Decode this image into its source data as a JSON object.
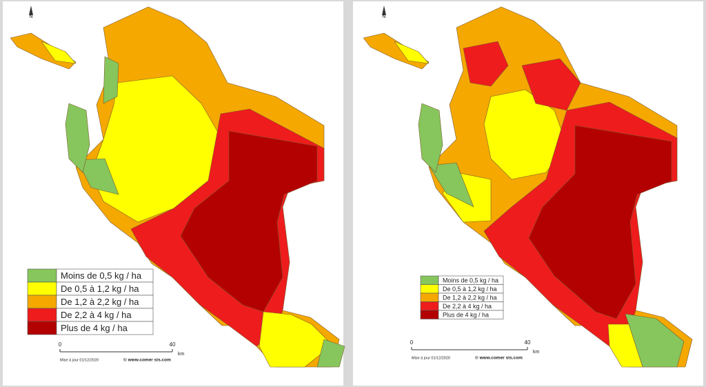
{
  "panels": [
    {
      "north": "N",
      "legend": [
        {
          "label": "Moins de 0,5 kg / ha",
          "color": "#86c65c"
        },
        {
          "label": "De 0,5 à 1,2 kg / ha",
          "color": "#ffff00"
        },
        {
          "label": "De 1,2 à 2,2 kg / ha",
          "color": "#f5a800"
        },
        {
          "label": "De 2,2 à 4 kg / ha",
          "color": "#ee1c1c"
        },
        {
          "label": "Plus de 4 kg / ha",
          "color": "#b30000"
        }
      ],
      "scale": {
        "start": 0,
        "end": 40,
        "unit": "km"
      },
      "update": "Mise à jour 01/12/2020",
      "copyright": "© www.comer sis.com"
    },
    {
      "north": "N",
      "legend": [
        {
          "label": "Moins de 0,5 kg / ha",
          "color": "#86c65c"
        },
        {
          "label": "De 0,5 à 1,2 kg / ha",
          "color": "#ffff00"
        },
        {
          "label": "De 1,2 à 2,2 kg / ha",
          "color": "#f5a800"
        },
        {
          "label": "De 2,2 à 4 kg / ha",
          "color": "#ee1c1c"
        },
        {
          "label": "Plus de 4 kg / ha",
          "color": "#b30000"
        }
      ],
      "scale": {
        "start": 0,
        "end": 40,
        "unit": "km"
      },
      "update": "Mise à jour 01/12/2020",
      "copyright": "© www.comer sis.com"
    }
  ]
}
